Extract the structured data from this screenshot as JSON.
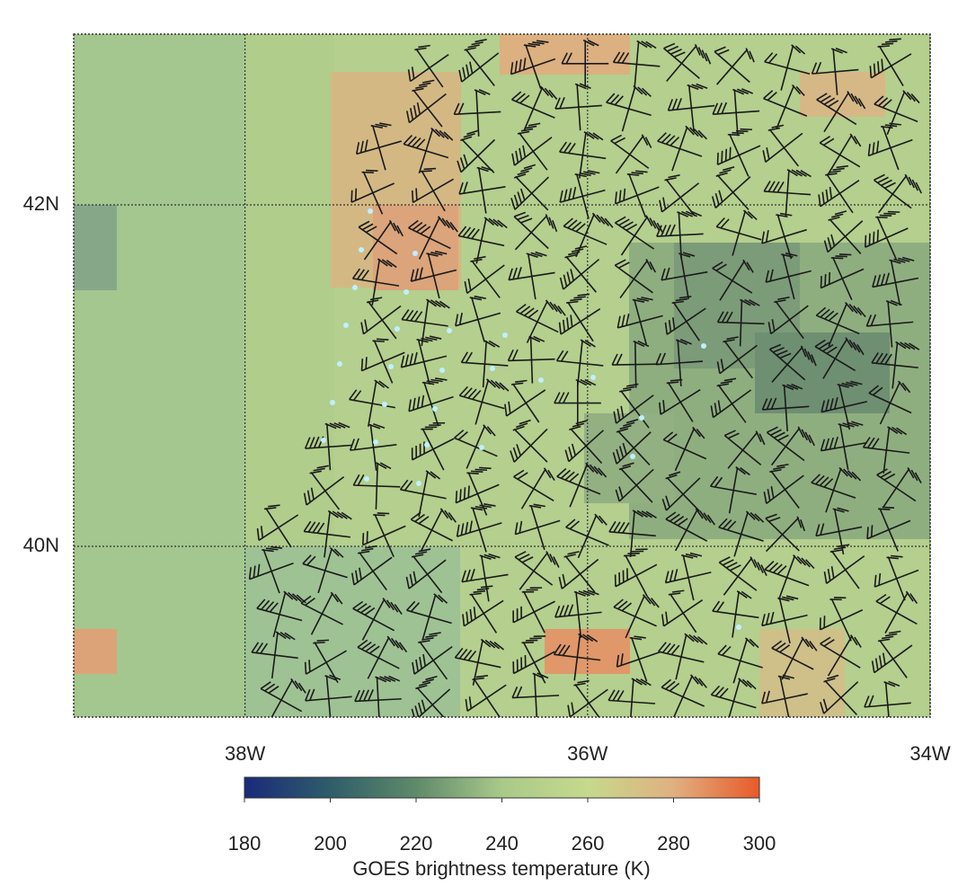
{
  "chart_data": {
    "type": "map",
    "xlim": [
      -39,
      -34
    ],
    "ylim": [
      39,
      43
    ],
    "xticks": [
      {
        "value": -38,
        "label": "38W"
      },
      {
        "value": -36,
        "label": "36W"
      },
      {
        "value": -34,
        "label": "34W"
      }
    ],
    "yticks": [
      {
        "value": 40,
        "label": "40N"
      },
      {
        "value": 42,
        "label": "42N"
      }
    ],
    "grid": true,
    "colorbar": {
      "lim": [
        180,
        300
      ],
      "ticks": [
        180,
        200,
        220,
        240,
        260,
        280,
        300
      ],
      "label": "GOES brightness temperature (K)",
      "colors": [
        "#1a2a7a",
        "#2f5d6a",
        "#5f8a6a",
        "#a9c98a",
        "#c6d98c",
        "#e0b080",
        "#e85a2a"
      ]
    }
  }
}
